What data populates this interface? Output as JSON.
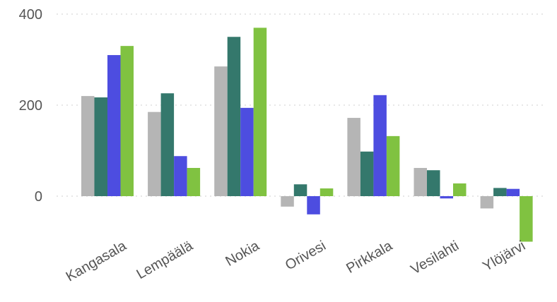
{
  "chart_data": {
    "type": "bar",
    "categories": [
      "Kangasala",
      "Lempäälä",
      "Nokia",
      "Orivesi",
      "Pirkkala",
      "Vesilahti",
      "Ylöjärvi"
    ],
    "series": [
      {
        "values": [
          220,
          185,
          285,
          -23,
          172,
          62,
          -27
        ],
        "color": "#b5b5b5"
      },
      {
        "values": [
          217,
          226,
          350,
          26,
          98,
          57,
          18
        ],
        "color": "#34786c"
      },
      {
        "values": [
          310,
          88,
          194,
          -40,
          222,
          -5,
          16
        ],
        "color": "#4d4de0"
      },
      {
        "values": [
          330,
          62,
          370,
          17,
          132,
          28,
          -100
        ],
        "color": "#80c241"
      }
    ],
    "yticks": [
      0,
      200,
      400
    ],
    "ylim": [
      -100,
      400
    ],
    "grid": true,
    "legend": "none"
  }
}
